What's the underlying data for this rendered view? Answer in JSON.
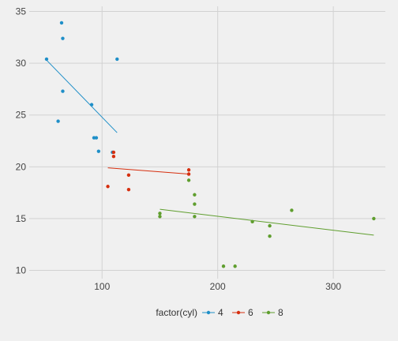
{
  "chart_data": {
    "type": "scatter",
    "title": "",
    "xlabel": "",
    "ylabel": "",
    "xlim": [
      37,
      345
    ],
    "ylim": [
      9.2,
      35.5
    ],
    "x_ticks": [
      100,
      200,
      300
    ],
    "y_ticks": [
      10,
      15,
      20,
      25,
      30,
      35
    ],
    "grid": true,
    "legend": {
      "title": "factor(cyl)",
      "placement": "bottom"
    },
    "series": [
      {
        "name": "4",
        "color": "#1f8fc8",
        "points": [
          {
            "x": 52,
            "y": 30.4
          },
          {
            "x": 62,
            "y": 24.4
          },
          {
            "x": 65,
            "y": 33.9
          },
          {
            "x": 66,
            "y": 32.4
          },
          {
            "x": 66,
            "y": 27.3
          },
          {
            "x": 91,
            "y": 26.0
          },
          {
            "x": 93,
            "y": 22.8
          },
          {
            "x": 95,
            "y": 22.8
          },
          {
            "x": 97,
            "y": 21.5
          },
          {
            "x": 109,
            "y": 21.4
          },
          {
            "x": 113,
            "y": 30.4
          }
        ],
        "fit": [
          {
            "x": 52,
            "y": 30.3
          },
          {
            "x": 113,
            "y": 23.3
          }
        ]
      },
      {
        "name": "6",
        "color": "#d62f0f",
        "points": [
          {
            "x": 105,
            "y": 18.1
          },
          {
            "x": 110,
            "y": 21.0
          },
          {
            "x": 110,
            "y": 21.4
          },
          {
            "x": 123,
            "y": 19.2
          },
          {
            "x": 123,
            "y": 17.8
          },
          {
            "x": 175,
            "y": 19.7
          },
          {
            "x": 175,
            "y": 19.3
          }
        ],
        "fit": [
          {
            "x": 105,
            "y": 19.9
          },
          {
            "x": 175,
            "y": 19.3
          }
        ]
      },
      {
        "name": "8",
        "color": "#5f9e2e",
        "points": [
          {
            "x": 150,
            "y": 15.2
          },
          {
            "x": 150,
            "y": 15.5
          },
          {
            "x": 175,
            "y": 18.7
          },
          {
            "x": 180,
            "y": 17.3
          },
          {
            "x": 180,
            "y": 16.4
          },
          {
            "x": 180,
            "y": 15.2
          },
          {
            "x": 205,
            "y": 10.4
          },
          {
            "x": 215,
            "y": 10.4
          },
          {
            "x": 230,
            "y": 14.7
          },
          {
            "x": 245,
            "y": 14.3
          },
          {
            "x": 245,
            "y": 13.3
          },
          {
            "x": 264,
            "y": 15.8
          },
          {
            "x": 335,
            "y": 15.0
          }
        ],
        "fit": [
          {
            "x": 150,
            "y": 15.9
          },
          {
            "x": 335,
            "y": 13.4
          }
        ]
      }
    ]
  }
}
